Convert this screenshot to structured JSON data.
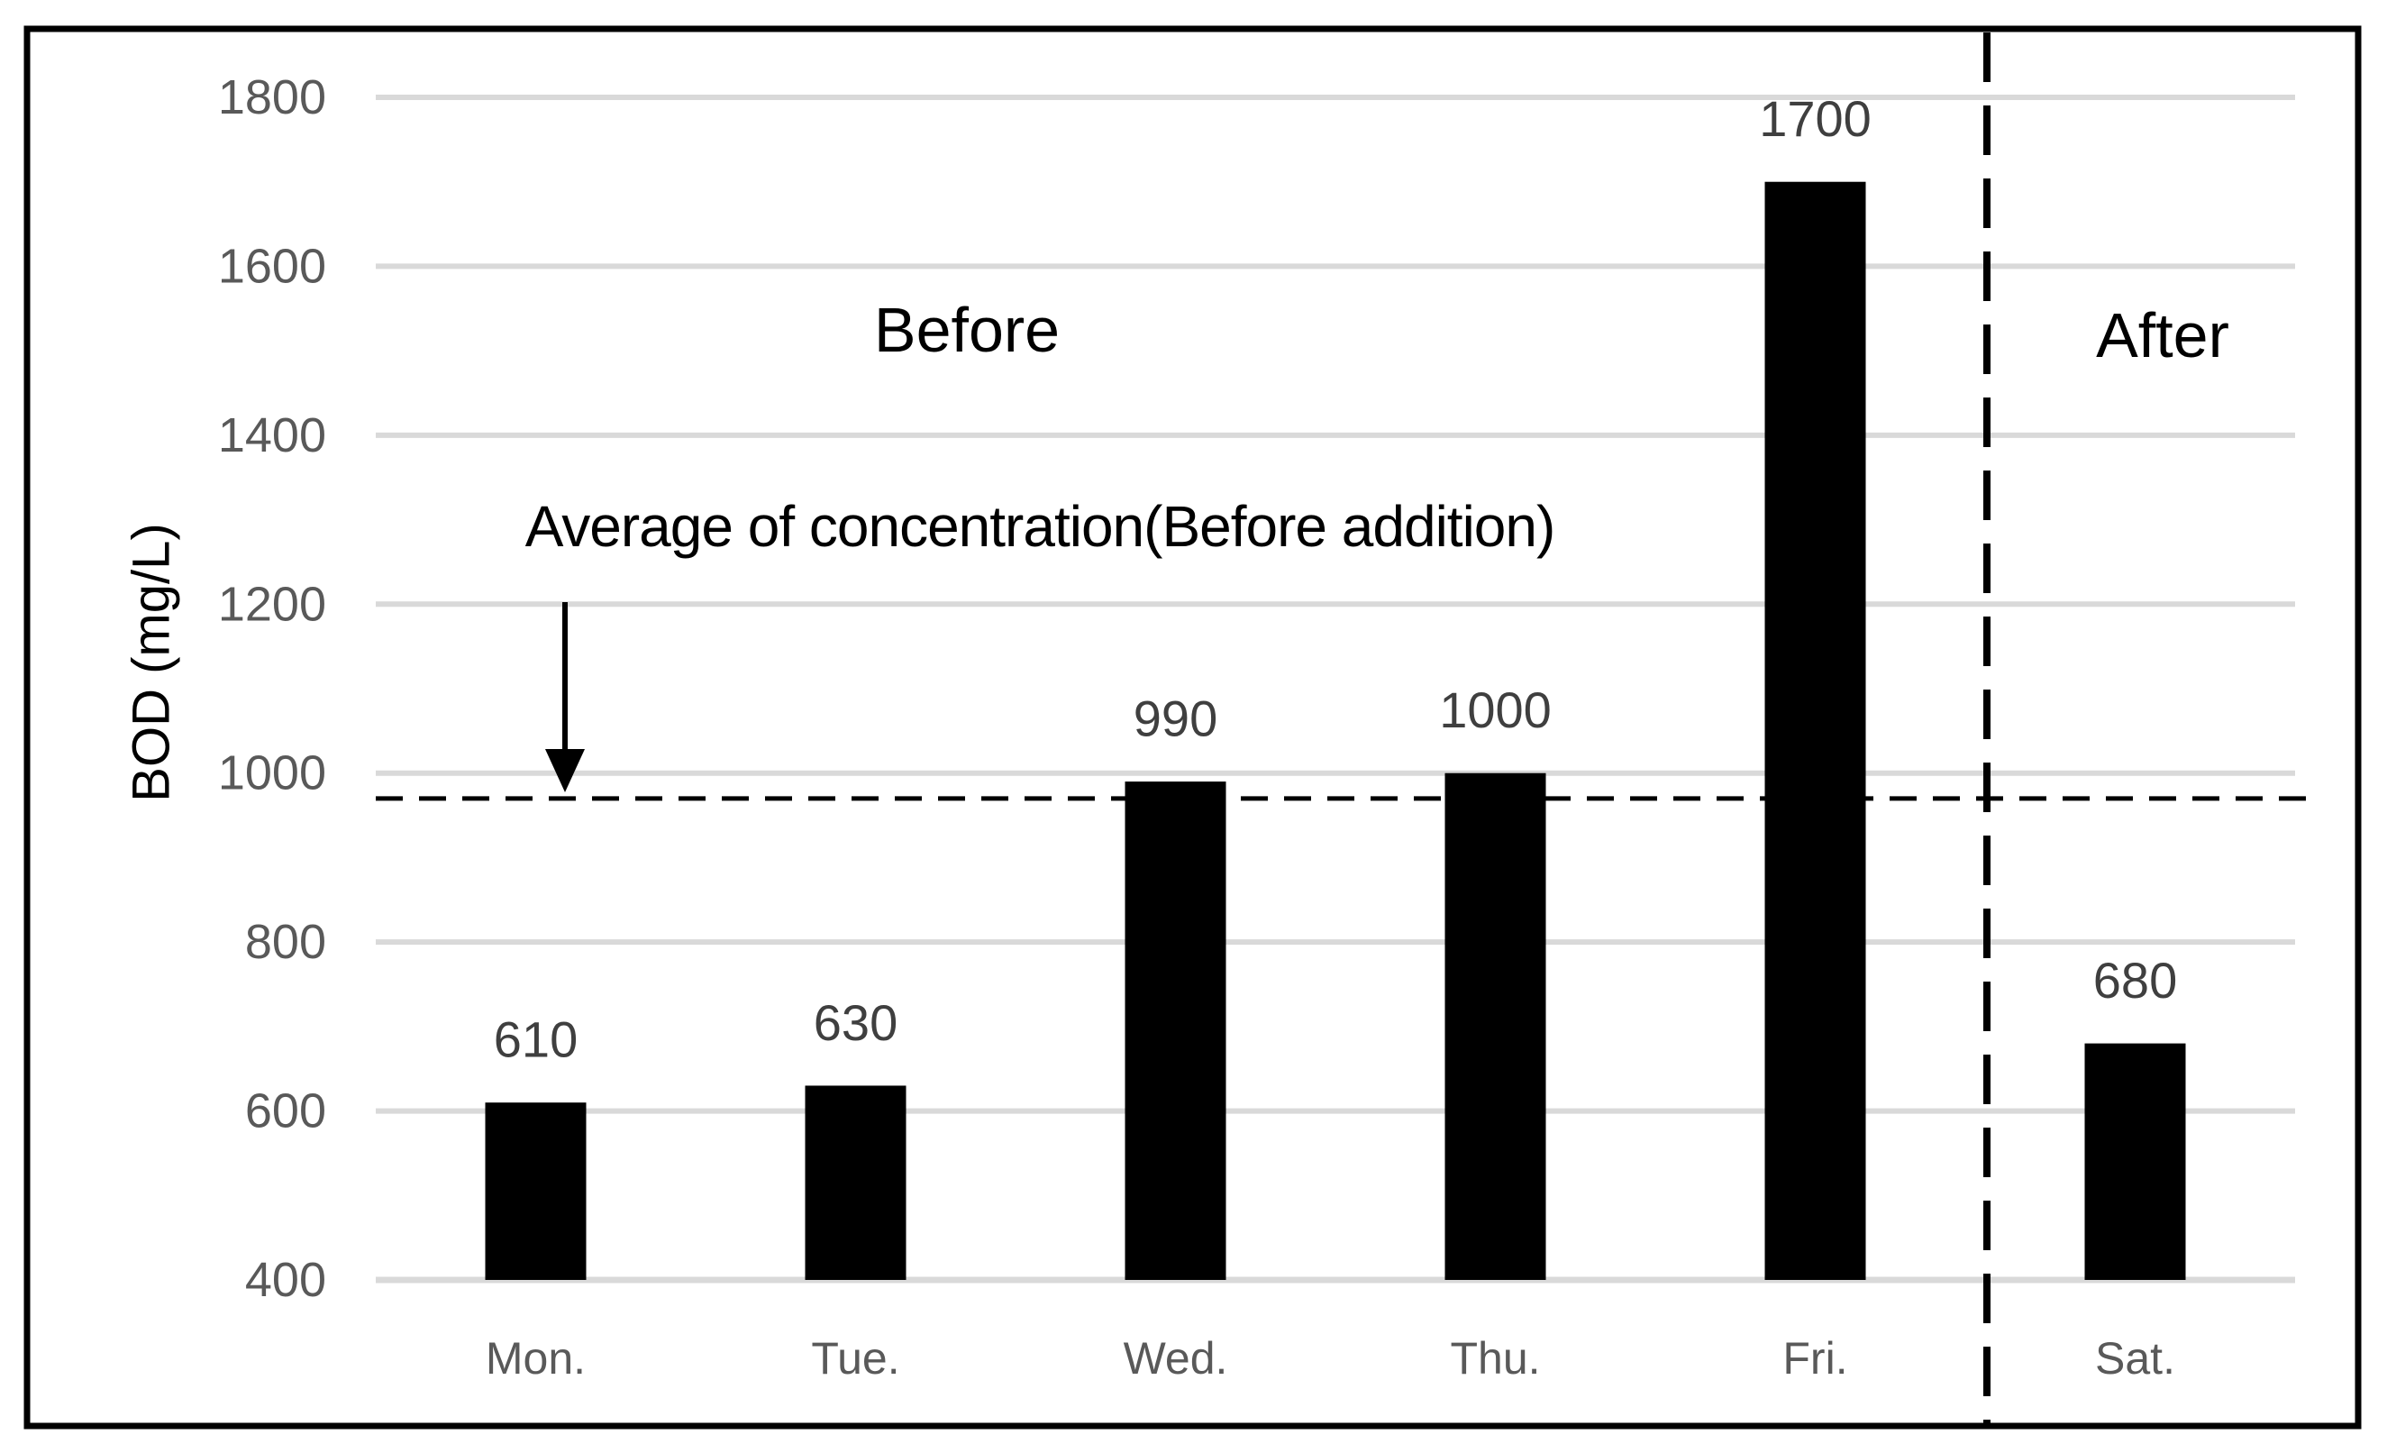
{
  "chart_data": {
    "type": "bar",
    "title": "",
    "categories": [
      "Mon.",
      "Tue.",
      "Wed.",
      "Thu.",
      "Fri.",
      "Sat."
    ],
    "values": [
      610,
      630,
      990,
      1000,
      1700,
      680
    ],
    "value_labels": [
      "610",
      "630",
      "990",
      "1000",
      "1700",
      "680"
    ],
    "xlabel": "",
    "ylabel": "BOD (mg/L)",
    "ylim": [
      400,
      1800
    ],
    "ytick_interval": 200,
    "yticks": [
      1800,
      1600,
      1400,
      1200,
      1000,
      800,
      600,
      400
    ],
    "grid": true,
    "legend": "none",
    "colors": {
      "bar": "#000000",
      "gridline": "#d9d9d9",
      "axis_tick_label": "#595959",
      "value_label": "#3f3f3f",
      "annotation_text": "#000000",
      "dashed_line": "#000000",
      "background": "#ffffff",
      "figure_border": "#000000"
    },
    "annotations": {
      "before_label": "Before",
      "after_label": "After",
      "average_label": "Average of concentration(Before addition)",
      "average_line_value": 970,
      "separator_after_category": "Fri."
    }
  }
}
